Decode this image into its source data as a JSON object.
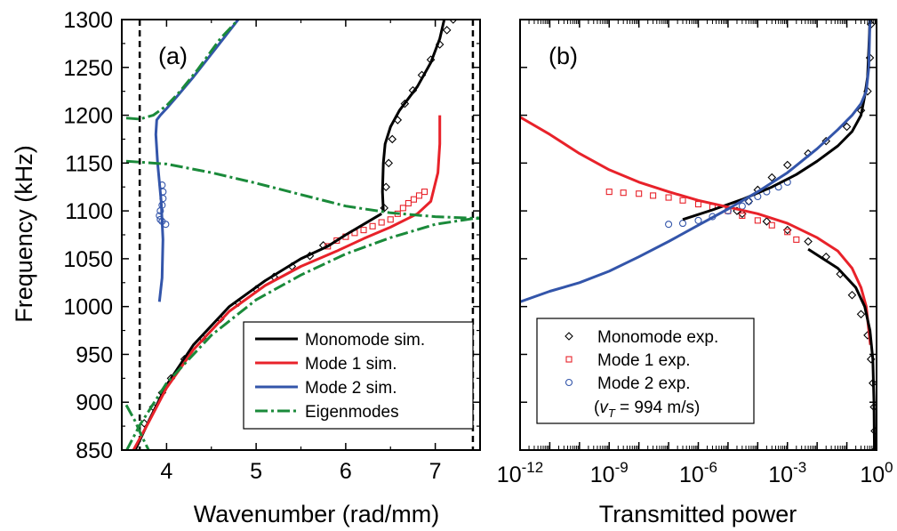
{
  "chart_data": [
    {
      "panel": "(a)",
      "type": "line",
      "xlabel": "Wavenumber (rad/mm)",
      "ylabel": "Frequency (kHz)",
      "xlim": [
        3.5,
        7.5
      ],
      "ylim": [
        850,
        1300
      ],
      "x_ticks": [
        "4",
        "5",
        "6",
        "7"
      ],
      "y_ticks": [
        "850",
        "900",
        "950",
        "1000",
        "1050",
        "1100",
        "1150",
        "1200",
        "1250",
        "1300"
      ],
      "legend": {
        "placement": "bottom-right",
        "entries": [
          "Monomode sim.",
          "Mode 1 sim.",
          "Mode 2 sim.",
          "Eigenmodes"
        ]
      },
      "reference_lines": [
        {
          "axis": "x",
          "value": 3.7,
          "style": "dashed"
        },
        {
          "axis": "x",
          "value": 7.42,
          "style": "dashed"
        }
      ],
      "series": [
        {
          "name": "Monomode sim.",
          "color": "#000000",
          "x": [
            3.65,
            3.8,
            4.0,
            4.3,
            4.7,
            5.1,
            5.5,
            5.8,
            6.0,
            6.2,
            6.4
          ],
          "y": [
            850,
            880,
            918,
            960,
            1000,
            1027,
            1050,
            1063,
            1075,
            1086,
            1097
          ]
        },
        {
          "name": "Monomode sim.",
          "color": "#000000",
          "x": [
            6.42,
            6.41,
            6.42,
            6.44,
            6.5,
            6.6,
            6.8,
            6.95,
            7.05,
            7.1
          ],
          "y": [
            1100,
            1120,
            1150,
            1170,
            1188,
            1205,
            1230,
            1255,
            1280,
            1300
          ]
        },
        {
          "name": "Mode 1 sim.",
          "color": "#e8222a",
          "x": [
            3.63,
            3.8,
            4.0,
            4.3,
            4.7,
            5.1,
            5.5,
            5.9,
            6.2,
            6.5,
            6.8,
            6.95,
            7.03,
            7.05,
            7.05
          ],
          "y": [
            850,
            879,
            915,
            955,
            995,
            1022,
            1042,
            1058,
            1071,
            1083,
            1097,
            1110,
            1140,
            1170,
            1200
          ]
        },
        {
          "name": "Mode 2 sim.",
          "color": "#3355aa",
          "x": [
            3.92,
            3.95,
            3.96,
            3.94,
            3.9,
            3.88,
            3.89,
            3.93,
            4.0,
            4.12,
            4.3,
            4.55,
            4.8
          ],
          "y": [
            1005,
            1030,
            1070,
            1110,
            1150,
            1180,
            1195,
            1200,
            1207,
            1220,
            1240,
            1270,
            1300
          ]
        },
        {
          "name": "Eigenmodes",
          "color": "#1a8a3a",
          "x": [
            3.55,
            3.7,
            4.0,
            4.5,
            5.0,
            5.5,
            6.0,
            6.5,
            7.0,
            7.5
          ],
          "y": [
            849,
            876,
            920,
            970,
            1007,
            1033,
            1055,
            1072,
            1086,
            1093
          ]
        },
        {
          "name": "Eigenmodes",
          "color": "#1a8a3a",
          "x": [
            3.55,
            4.0,
            4.5,
            5.0,
            5.5,
            6.0,
            6.5,
            7.0,
            7.5
          ],
          "y": [
            1152,
            1149,
            1140,
            1129,
            1117,
            1105,
            1098,
            1094,
            1092
          ]
        },
        {
          "name": "Eigenmodes",
          "color": "#1a8a3a",
          "x": [
            3.55,
            3.7,
            3.85,
            4.0,
            4.15,
            4.35,
            4.6,
            4.8
          ],
          "y": [
            1197,
            1196,
            1200,
            1210,
            1225,
            1248,
            1280,
            1300
          ]
        },
        {
          "name": "Eigenmodes",
          "color": "#1a8a3a",
          "x": [
            3.55,
            3.65,
            3.72,
            3.8
          ],
          "y": [
            897,
            880,
            865,
            850
          ]
        }
      ],
      "experimental": [
        {
          "name": "Monomode exp.",
          "marker": "diamond",
          "color": "#000000",
          "x": [
            3.75,
            3.85,
            3.95,
            4.05,
            4.2,
            4.4,
            4.6,
            4.8,
            5.0,
            5.2,
            5.4,
            5.6,
            5.75,
            6.43,
            6.45,
            6.48,
            6.52,
            6.58,
            6.66,
            6.75,
            6.85,
            6.95,
            7.05,
            7.13,
            7.2
          ],
          "y": [
            878,
            895,
            910,
            925,
            945,
            967,
            987,
            1004,
            1018,
            1031,
            1042,
            1053,
            1064,
            1103,
            1125,
            1150,
            1175,
            1195,
            1212,
            1226,
            1242,
            1258,
            1274,
            1289,
            1300
          ]
        },
        {
          "name": "Mode 1 exp.",
          "marker": "square",
          "color": "#e8222a",
          "x": [
            5.8,
            5.9,
            6.0,
            6.1,
            6.2,
            6.3,
            6.4,
            6.5,
            6.58,
            6.64,
            6.7,
            6.76,
            6.82,
            6.88
          ],
          "y": [
            1063,
            1069,
            1073,
            1077,
            1080,
            1084,
            1088,
            1091,
            1097,
            1103,
            1108,
            1112,
            1116,
            1120
          ]
        },
        {
          "name": "Mode 2 exp.",
          "marker": "circle",
          "color": "#3355aa",
          "x": [
            3.95,
            3.96,
            3.96,
            3.95,
            3.93,
            3.92,
            3.93,
            3.95,
            3.99
          ],
          "y": [
            1127,
            1120,
            1113,
            1106,
            1100,
            1095,
            1091,
            1089,
            1086
          ]
        }
      ]
    },
    {
      "panel": "(b)",
      "type": "line",
      "xlabel": "Transmitted power",
      "ylabel": "",
      "xscale": "log",
      "xlim": [
        1e-12,
        1
      ],
      "ylim": [
        850,
        1300
      ],
      "x_ticks": [
        "10-12",
        "10-9",
        "10-6",
        "10-3",
        "100"
      ],
      "legend": {
        "placement": "bottom-left",
        "entries": [
          "Monomode exp.",
          "Mode 1 exp.",
          "Mode 2 exp."
        ],
        "note": "(vT = 994 m/s)"
      },
      "series": [
        {
          "name": "Monomode",
          "color": "#000000",
          "x": [
            0.6,
            0.55,
            0.5,
            0.4,
            0.3,
            0.15,
            0.05,
            0.01,
            0.002,
            0.0003,
            3e-05,
            3e-06,
            3e-07
          ],
          "y": [
            1300,
            1270,
            1240,
            1220,
            1200,
            1183,
            1168,
            1152,
            1138,
            1125,
            1112,
            1101,
            1091
          ]
        },
        {
          "name": "Mode 1 sim.",
          "color": "#e8222a",
          "x": [
            1e-12,
            1e-11,
            1e-10,
            1e-09,
            1e-08,
            1e-07,
            1e-06,
            1e-05,
            0.0001,
            0.001,
            0.01,
            0.05,
            0.15,
            0.3,
            0.45,
            0.55,
            0.62
          ],
          "y": [
            1198,
            1180,
            1160,
            1143,
            1130,
            1120,
            1111,
            1104,
            1097,
            1087,
            1072,
            1058,
            1040,
            1020,
            1000,
            975,
            960
          ]
        },
        {
          "name": "Mode 2 sim.",
          "color": "#3355aa",
          "x": [
            1e-12,
            1e-11,
            1e-10,
            1e-09,
            1e-08,
            1e-07,
            1e-06,
            1e-05,
            0.0001,
            0.001,
            0.01,
            0.05,
            0.15,
            0.3,
            0.45,
            0.55,
            0.6
          ],
          "y": [
            1005,
            1016,
            1025,
            1037,
            1052,
            1068,
            1085,
            1102,
            1120,
            1140,
            1165,
            1185,
            1200,
            1212,
            1225,
            1250,
            1300
          ]
        },
        {
          "name": "Monomode",
          "color": "#000000",
          "x": [
            0.005,
            0.05,
            0.2,
            0.4,
            0.6,
            0.75,
            0.82,
            0.85
          ],
          "y": [
            1060,
            1040,
            1020,
            1000,
            975,
            945,
            900,
            850
          ]
        }
      ],
      "experimental": [
        {
          "name": "Monomode exp.",
          "marker": "diamond",
          "color": "#000000",
          "x": [
            3e-05,
            0.0002,
            0.001,
            0.005,
            0.02,
            0.06,
            0.15,
            0.3,
            0.5,
            0.65,
            0.75,
            0.82,
            0.87,
            0.9
          ],
          "y": [
            1097,
            1089,
            1080,
            1068,
            1052,
            1034,
            1012,
            992,
            970,
            945,
            920,
            895,
            870,
            850
          ]
        },
        {
          "name": "Monomode exp.",
          "marker": "diamond",
          "color": "#000000",
          "x": [
            2e-05,
            5e-05,
            0.0001,
            0.0003,
            0.001,
            0.005,
            0.02,
            0.1,
            0.3,
            0.5,
            0.6,
            0.65
          ],
          "y": [
            1100,
            1110,
            1122,
            1135,
            1148,
            1160,
            1173,
            1188,
            1205,
            1225,
            1260,
            1295
          ]
        },
        {
          "name": "Mode 1 exp.",
          "marker": "square",
          "color": "#e8222a",
          "x": [
            1e-09,
            3e-09,
            1e-08,
            3e-08,
            1e-07,
            3e-07,
            1e-06,
            3e-06,
            1e-05,
            3e-05,
            0.0001,
            0.0003,
            0.001,
            0.002
          ],
          "y": [
            1120,
            1119,
            1118,
            1116,
            1114,
            1111,
            1107,
            1104,
            1100,
            1095,
            1090,
            1085,
            1078,
            1070
          ]
        },
        {
          "name": "Mode 2 exp.",
          "marker": "circle",
          "color": "#3355aa",
          "x": [
            1e-07,
            3e-07,
            1e-06,
            3e-06,
            1e-05,
            3e-05,
            5e-05,
            0.0001,
            0.0002,
            0.0005,
            0.001
          ],
          "y": [
            1086,
            1087,
            1090,
            1094,
            1100,
            1105,
            1110,
            1115,
            1120,
            1125,
            1130
          ]
        }
      ]
    }
  ]
}
